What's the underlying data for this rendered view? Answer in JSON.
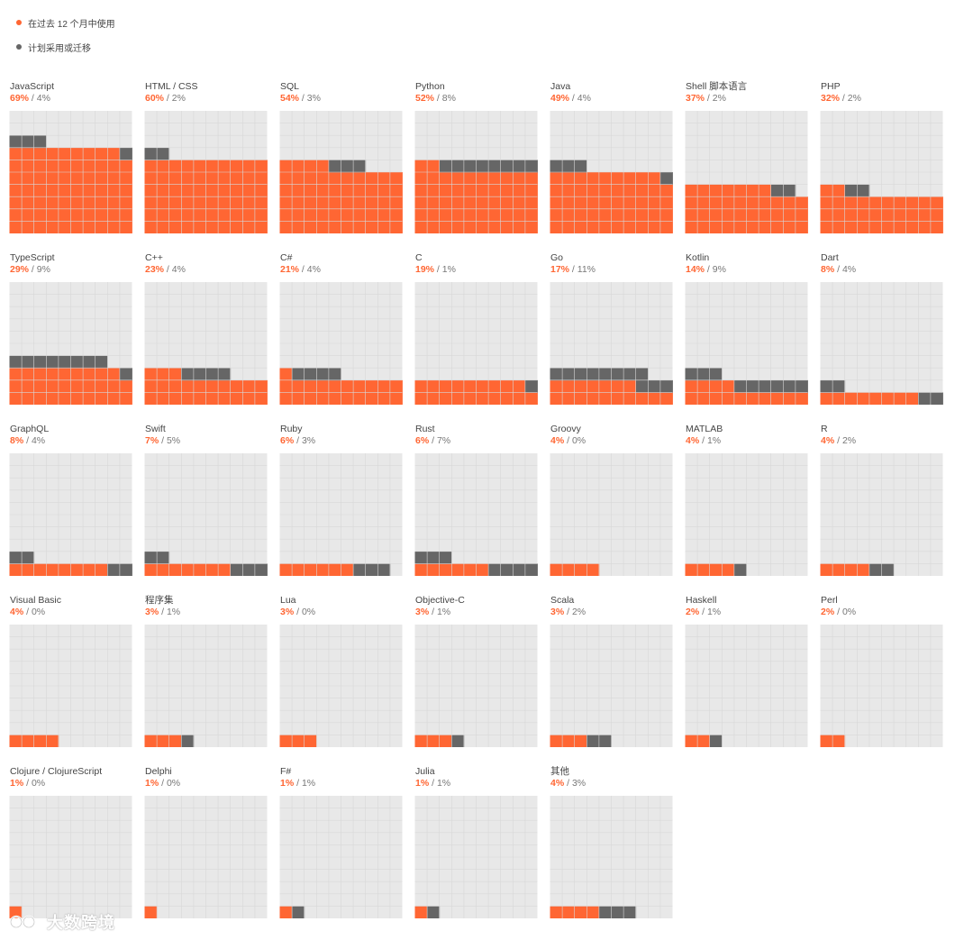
{
  "legend": {
    "used_label": "在过去 12 个月中使用",
    "planned_label": "计划采用或迁移"
  },
  "colors": {
    "used": "#ff6633",
    "planned": "#666666",
    "grid_bg": "#e8e8e8",
    "grid_line": "#d8d8d8"
  },
  "watermark": {
    "text": "大数跨境"
  },
  "chart_data": {
    "type": "waffle",
    "grid": "10x10 per language (1 square = 1%)",
    "series": [
      {
        "name": "在过去 12 个月中使用",
        "key": "used"
      },
      {
        "name": "计划采用或迁移",
        "key": "planned"
      }
    ],
    "languages": [
      {
        "name": "JavaScript",
        "used": 69,
        "planned": 4,
        "used_label": "69%",
        "planned_label": "4%"
      },
      {
        "name": "HTML / CSS",
        "used": 60,
        "planned": 2,
        "used_label": "60%",
        "planned_label": "2%"
      },
      {
        "name": "SQL",
        "used": 54,
        "planned": 3,
        "used_label": "54%",
        "planned_label": "3%"
      },
      {
        "name": "Python",
        "used": 52,
        "planned": 8,
        "used_label": "52%",
        "planned_label": "8%"
      },
      {
        "name": "Java",
        "used": 49,
        "planned": 4,
        "used_label": "49%",
        "planned_label": "4%"
      },
      {
        "name": "Shell 脚本语言",
        "used": 37,
        "planned": 2,
        "used_label": "37%",
        "planned_label": "2%"
      },
      {
        "name": "PHP",
        "used": 32,
        "planned": 2,
        "used_label": "32%",
        "planned_label": "2%"
      },
      {
        "name": "TypeScript",
        "used": 29,
        "planned": 9,
        "used_label": "29%",
        "planned_label": "9%"
      },
      {
        "name": "C++",
        "used": 23,
        "planned": 4,
        "used_label": "23%",
        "planned_label": "4%"
      },
      {
        "name": "C#",
        "used": 21,
        "planned": 4,
        "used_label": "21%",
        "planned_label": "4%"
      },
      {
        "name": "C",
        "used": 19,
        "planned": 1,
        "used_label": "19%",
        "planned_label": "1%"
      },
      {
        "name": "Go",
        "used": 17,
        "planned": 11,
        "used_label": "17%",
        "planned_label": "11%"
      },
      {
        "name": "Kotlin",
        "used": 14,
        "planned": 9,
        "used_label": "14%",
        "planned_label": "9%"
      },
      {
        "name": "Dart",
        "used": 8,
        "planned": 4,
        "used_label": "8%",
        "planned_label": "4%"
      },
      {
        "name": "GraphQL",
        "used": 8,
        "planned": 4,
        "used_label": "8%",
        "planned_label": "4%"
      },
      {
        "name": "Swift",
        "used": 7,
        "planned": 5,
        "used_label": "7%",
        "planned_label": "5%"
      },
      {
        "name": "Ruby",
        "used": 6,
        "planned": 3,
        "used_label": "6%",
        "planned_label": "3%"
      },
      {
        "name": "Rust",
        "used": 6,
        "planned": 7,
        "used_label": "6%",
        "planned_label": "7%"
      },
      {
        "name": "Groovy",
        "used": 4,
        "planned": 0,
        "used_label": "4%",
        "planned_label": "0%"
      },
      {
        "name": "MATLAB",
        "used": 4,
        "planned": 1,
        "used_label": "4%",
        "planned_label": "1%"
      },
      {
        "name": "R",
        "used": 4,
        "planned": 2,
        "used_label": "4%",
        "planned_label": "2%"
      },
      {
        "name": "Visual Basic",
        "used": 4,
        "planned": 0,
        "used_label": "4%",
        "planned_label": "0%"
      },
      {
        "name": "程序集",
        "used": 3,
        "planned": 1,
        "used_label": "3%",
        "planned_label": "1%"
      },
      {
        "name": "Lua",
        "used": 3,
        "planned": 0,
        "used_label": "3%",
        "planned_label": "0%"
      },
      {
        "name": "Objective-C",
        "used": 3,
        "planned": 1,
        "used_label": "3%",
        "planned_label": "1%"
      },
      {
        "name": "Scala",
        "used": 3,
        "planned": 2,
        "used_label": "3%",
        "planned_label": "2%"
      },
      {
        "name": "Haskell",
        "used": 2,
        "planned": 1,
        "used_label": "2%",
        "planned_label": "1%"
      },
      {
        "name": "Perl",
        "used": 2,
        "planned": 0,
        "used_label": "2%",
        "planned_label": "0%"
      },
      {
        "name": "Clojure / ClojureScript",
        "used": 1,
        "planned": 0,
        "used_label": "1%",
        "planned_label": "0%"
      },
      {
        "name": "Delphi",
        "used": 1,
        "planned": 0,
        "used_label": "1%",
        "planned_label": "0%"
      },
      {
        "name": "F#",
        "used": 1,
        "planned": 1,
        "used_label": "1%",
        "planned_label": "1%"
      },
      {
        "name": "Julia",
        "used": 1,
        "planned": 1,
        "used_label": "1%",
        "planned_label": "1%"
      },
      {
        "name": "其他",
        "used": 4,
        "planned": 3,
        "used_label": "4%",
        "planned_label": "3%"
      }
    ]
  }
}
